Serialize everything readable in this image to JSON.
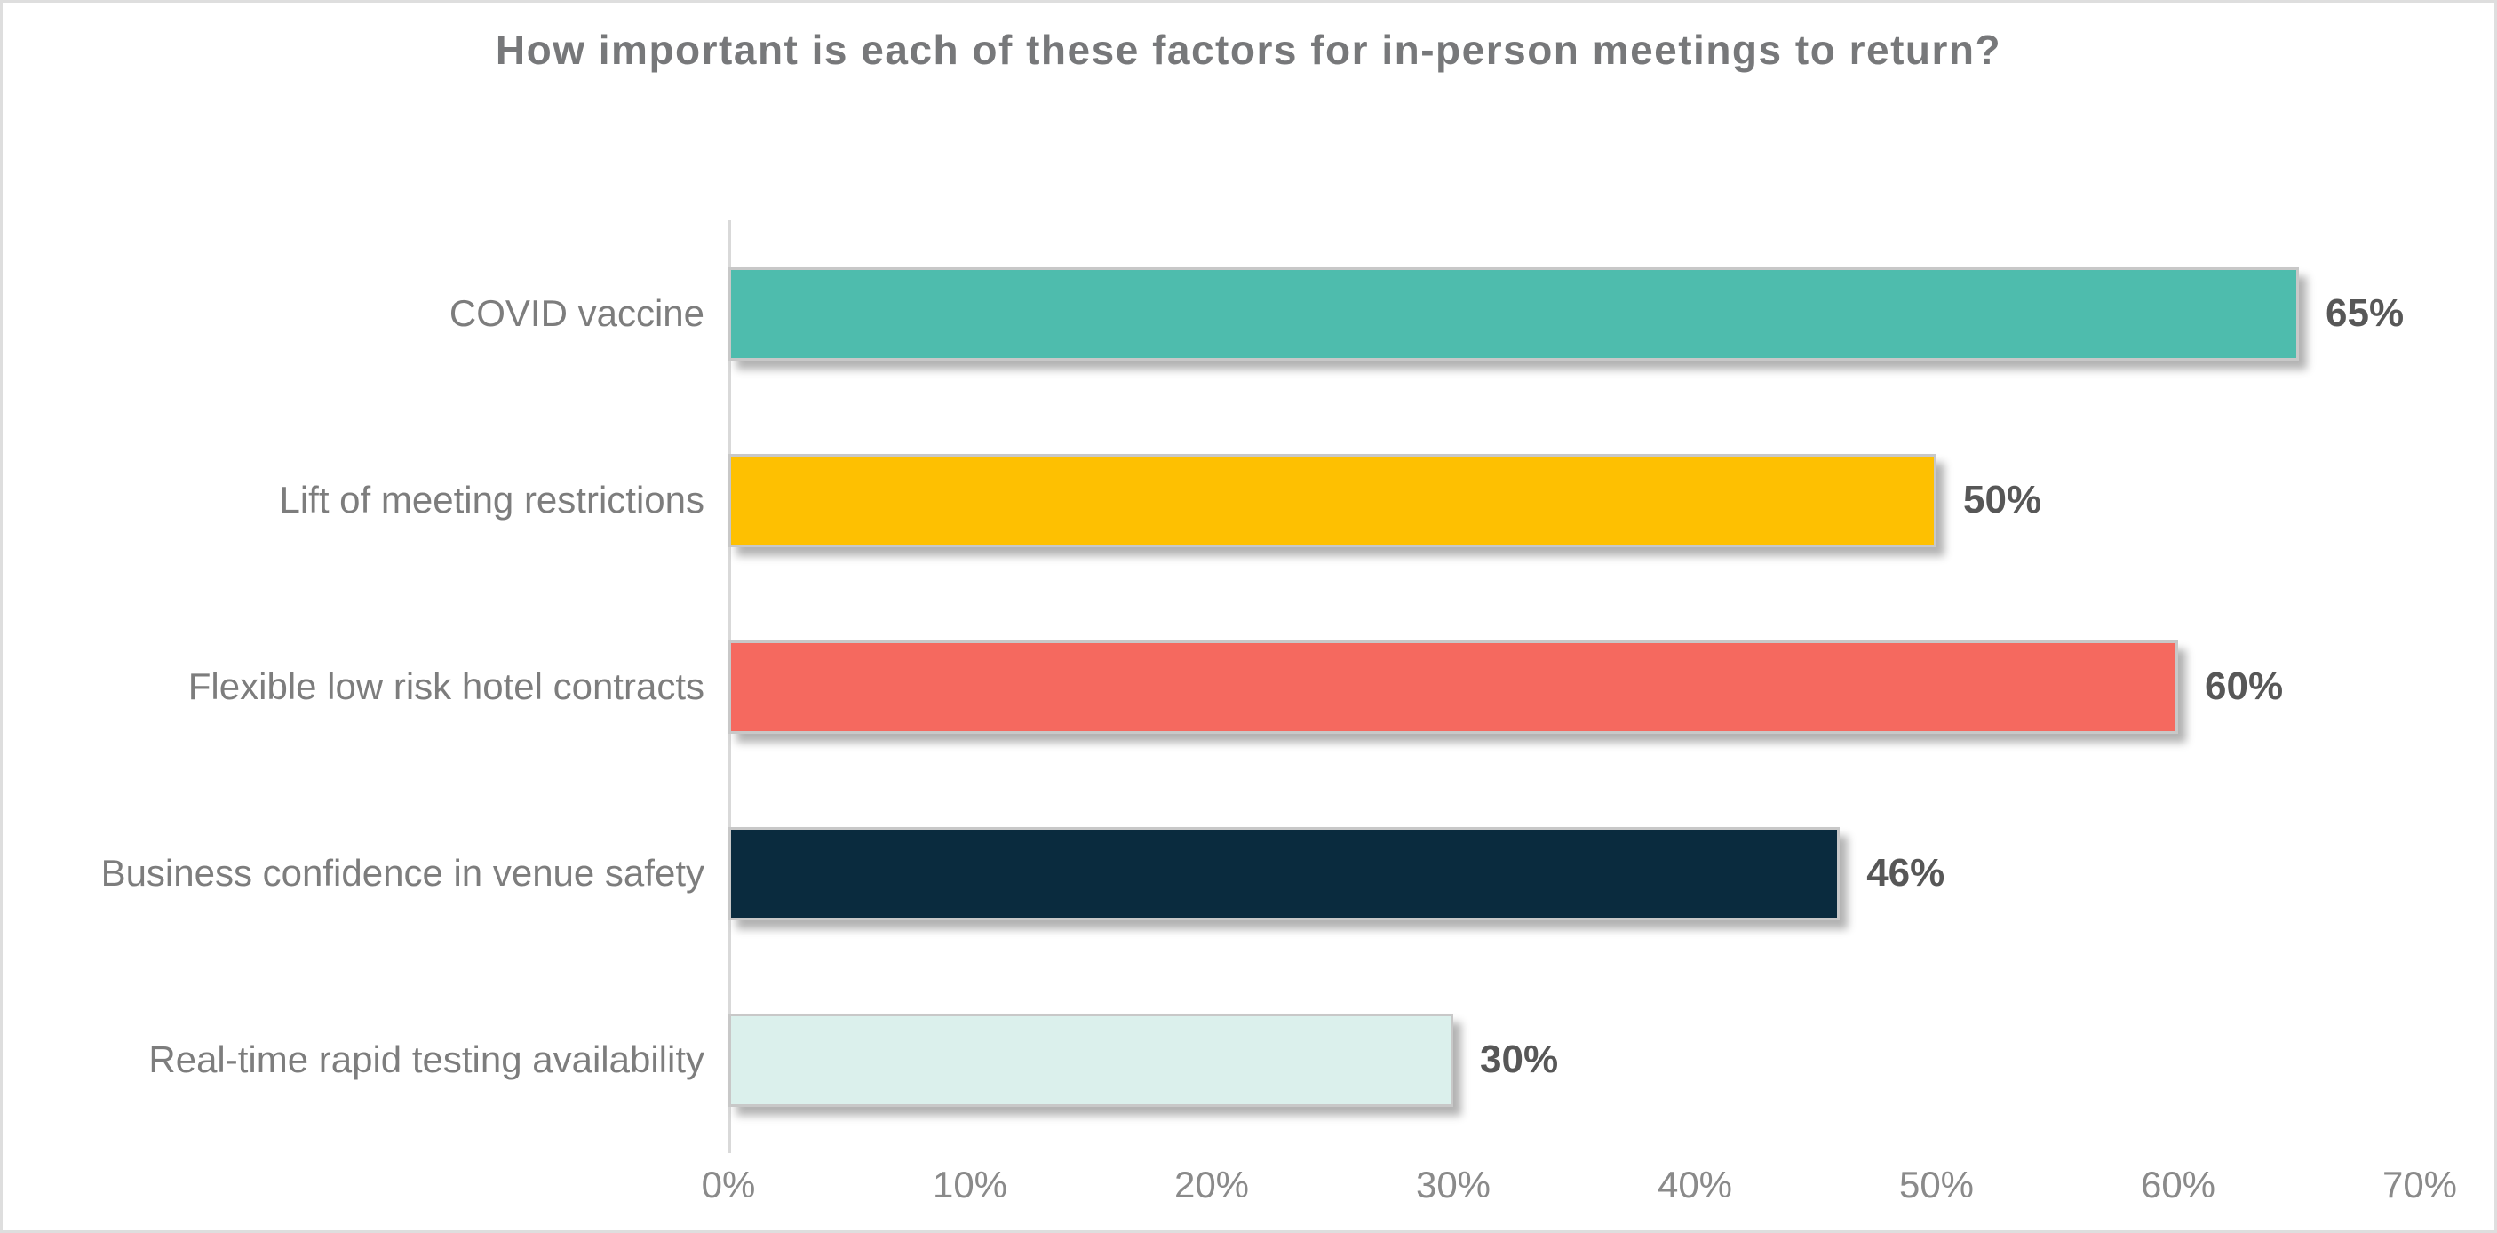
{
  "chart_data": {
    "type": "bar",
    "orientation": "horizontal",
    "title": "How important is each of these factors for in-person meetings to return?",
    "categories": [
      "COVID vaccine",
      "Lift of meeting restrictions",
      "Flexible low risk hotel contracts",
      "Business confidence in venue safety",
      "Real-time rapid testing availability"
    ],
    "values": [
      65,
      50,
      60,
      46,
      30
    ],
    "value_labels": [
      "65%",
      "50%",
      "60%",
      "46%",
      "30%"
    ],
    "bar_colors": [
      "#4ebcad",
      "#fec001",
      "#f5695f",
      "#0a2b3e",
      "#dbf0ec"
    ],
    "x_ticks": [
      "0%",
      "10%",
      "20%",
      "30%",
      "40%",
      "50%",
      "60%",
      "70%"
    ],
    "xlim": [
      0,
      70
    ],
    "xlabel": "",
    "ylabel": "",
    "grid": false,
    "legend": false,
    "colors": {
      "title_text": "#77787a",
      "category_text": "#7d7d7d",
      "value_text": "#575757",
      "tick_text": "#8a8a8a",
      "axis_line": "#d9d9d9",
      "bar_border": "#c8c8c8",
      "background": "#ffffff"
    }
  }
}
